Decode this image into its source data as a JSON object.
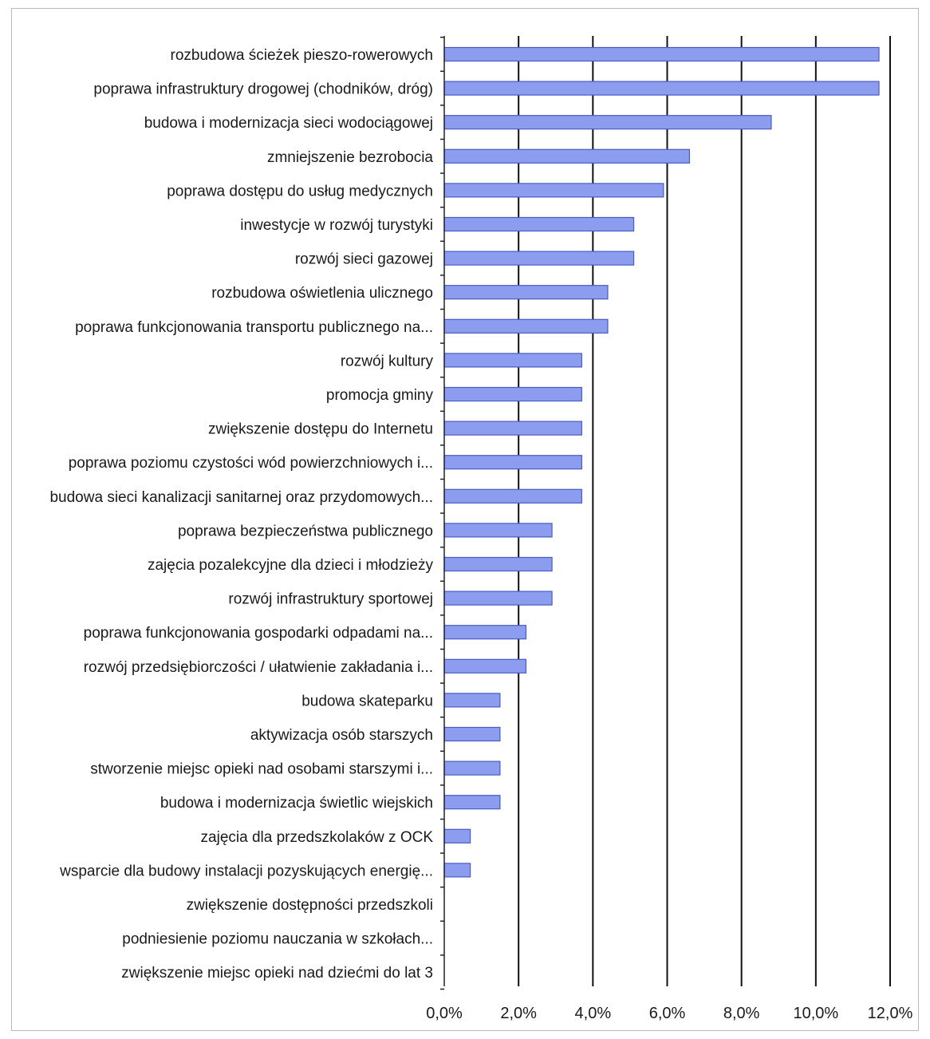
{
  "chart_data": {
    "type": "bar",
    "orientation": "horizontal",
    "categories": [
      "rozbudowa ścieżek pieszo-rowerowych",
      "poprawa infrastruktury drogowej (chodników, dróg)",
      "budowa i modernizacja sieci wodociągowej",
      "zmniejszenie bezrobocia",
      "poprawa dostępu do usług medycznych",
      "inwestycje w rozwój turystyki",
      "rozwój sieci gazowej",
      "rozbudowa oświetlenia ulicznego",
      "poprawa funkcjonowania transportu publicznego na...",
      "rozwój kultury",
      "promocja gminy",
      "zwiększenie dostępu do Internetu",
      "poprawa poziomu czystości wód powierzchniowych i...",
      "budowa sieci kanalizacji sanitarnej oraz przydomowych...",
      "poprawa bezpieczeństwa publicznego",
      "zajęcia pozalekcyjne dla dzieci i młodzieży",
      "rozwój infrastruktury sportowej",
      "poprawa funkcjonowania gospodarki odpadami na...",
      "rozwój przedsiębiorczości / ułatwienie zakładania i...",
      "budowa skateparku",
      "aktywizacja osób starszych",
      "stworzenie miejsc opieki nad osobami starszymi i...",
      "budowa i modernizacja świetlic wiejskich",
      "zajęcia dla przedszkolaków z OCK",
      "wsparcie dla budowy instalacji pozyskujących energię...",
      "zwiększenie dostępności przedszkoli",
      "podniesienie poziomu nauczania w szkołach...",
      "zwiększenie miejsc opieki nad dziećmi do lat 3"
    ],
    "values": [
      11.7,
      11.7,
      8.8,
      6.6,
      5.9,
      5.1,
      5.1,
      4.4,
      4.4,
      3.7,
      3.7,
      3.7,
      3.7,
      3.7,
      2.9,
      2.9,
      2.9,
      2.2,
      2.2,
      1.5,
      1.5,
      1.5,
      1.5,
      0.7,
      0.7,
      0,
      0,
      0
    ],
    "xticks": [
      "0,0%",
      "2,0%",
      "4,0%",
      "6,0%",
      "8,0%",
      "10,0%",
      "12,0%"
    ],
    "xlim": [
      0,
      12
    ],
    "title": "",
    "xlabel": "",
    "ylabel": "",
    "grid": true,
    "colors": {
      "bar_fill": "#8c9df0",
      "bar_stroke": "#4a5bc4",
      "grid": "#111111"
    }
  }
}
